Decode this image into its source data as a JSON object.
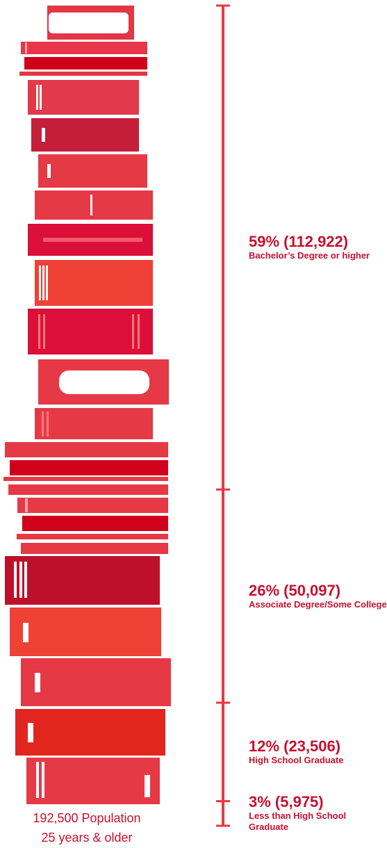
{
  "chart_data": {
    "type": "scale-bar",
    "segments": [
      {
        "label": "59% (112,922)",
        "percent": 59,
        "description": "Bachelor’s Degree or higher"
      },
      {
        "label": "26% (50,097)",
        "percent": 26,
        "description": "Associate Degree/Some College"
      },
      {
        "label": "12% (23,506)",
        "percent": 12,
        "description": "High School Graduate"
      },
      {
        "label": "3% (5,975)",
        "percent": 3,
        "description": "Less than High School Graduate"
      }
    ],
    "color": "#e8373f",
    "footer": [
      "192,500 Population",
      "25 years & older"
    ]
  }
}
